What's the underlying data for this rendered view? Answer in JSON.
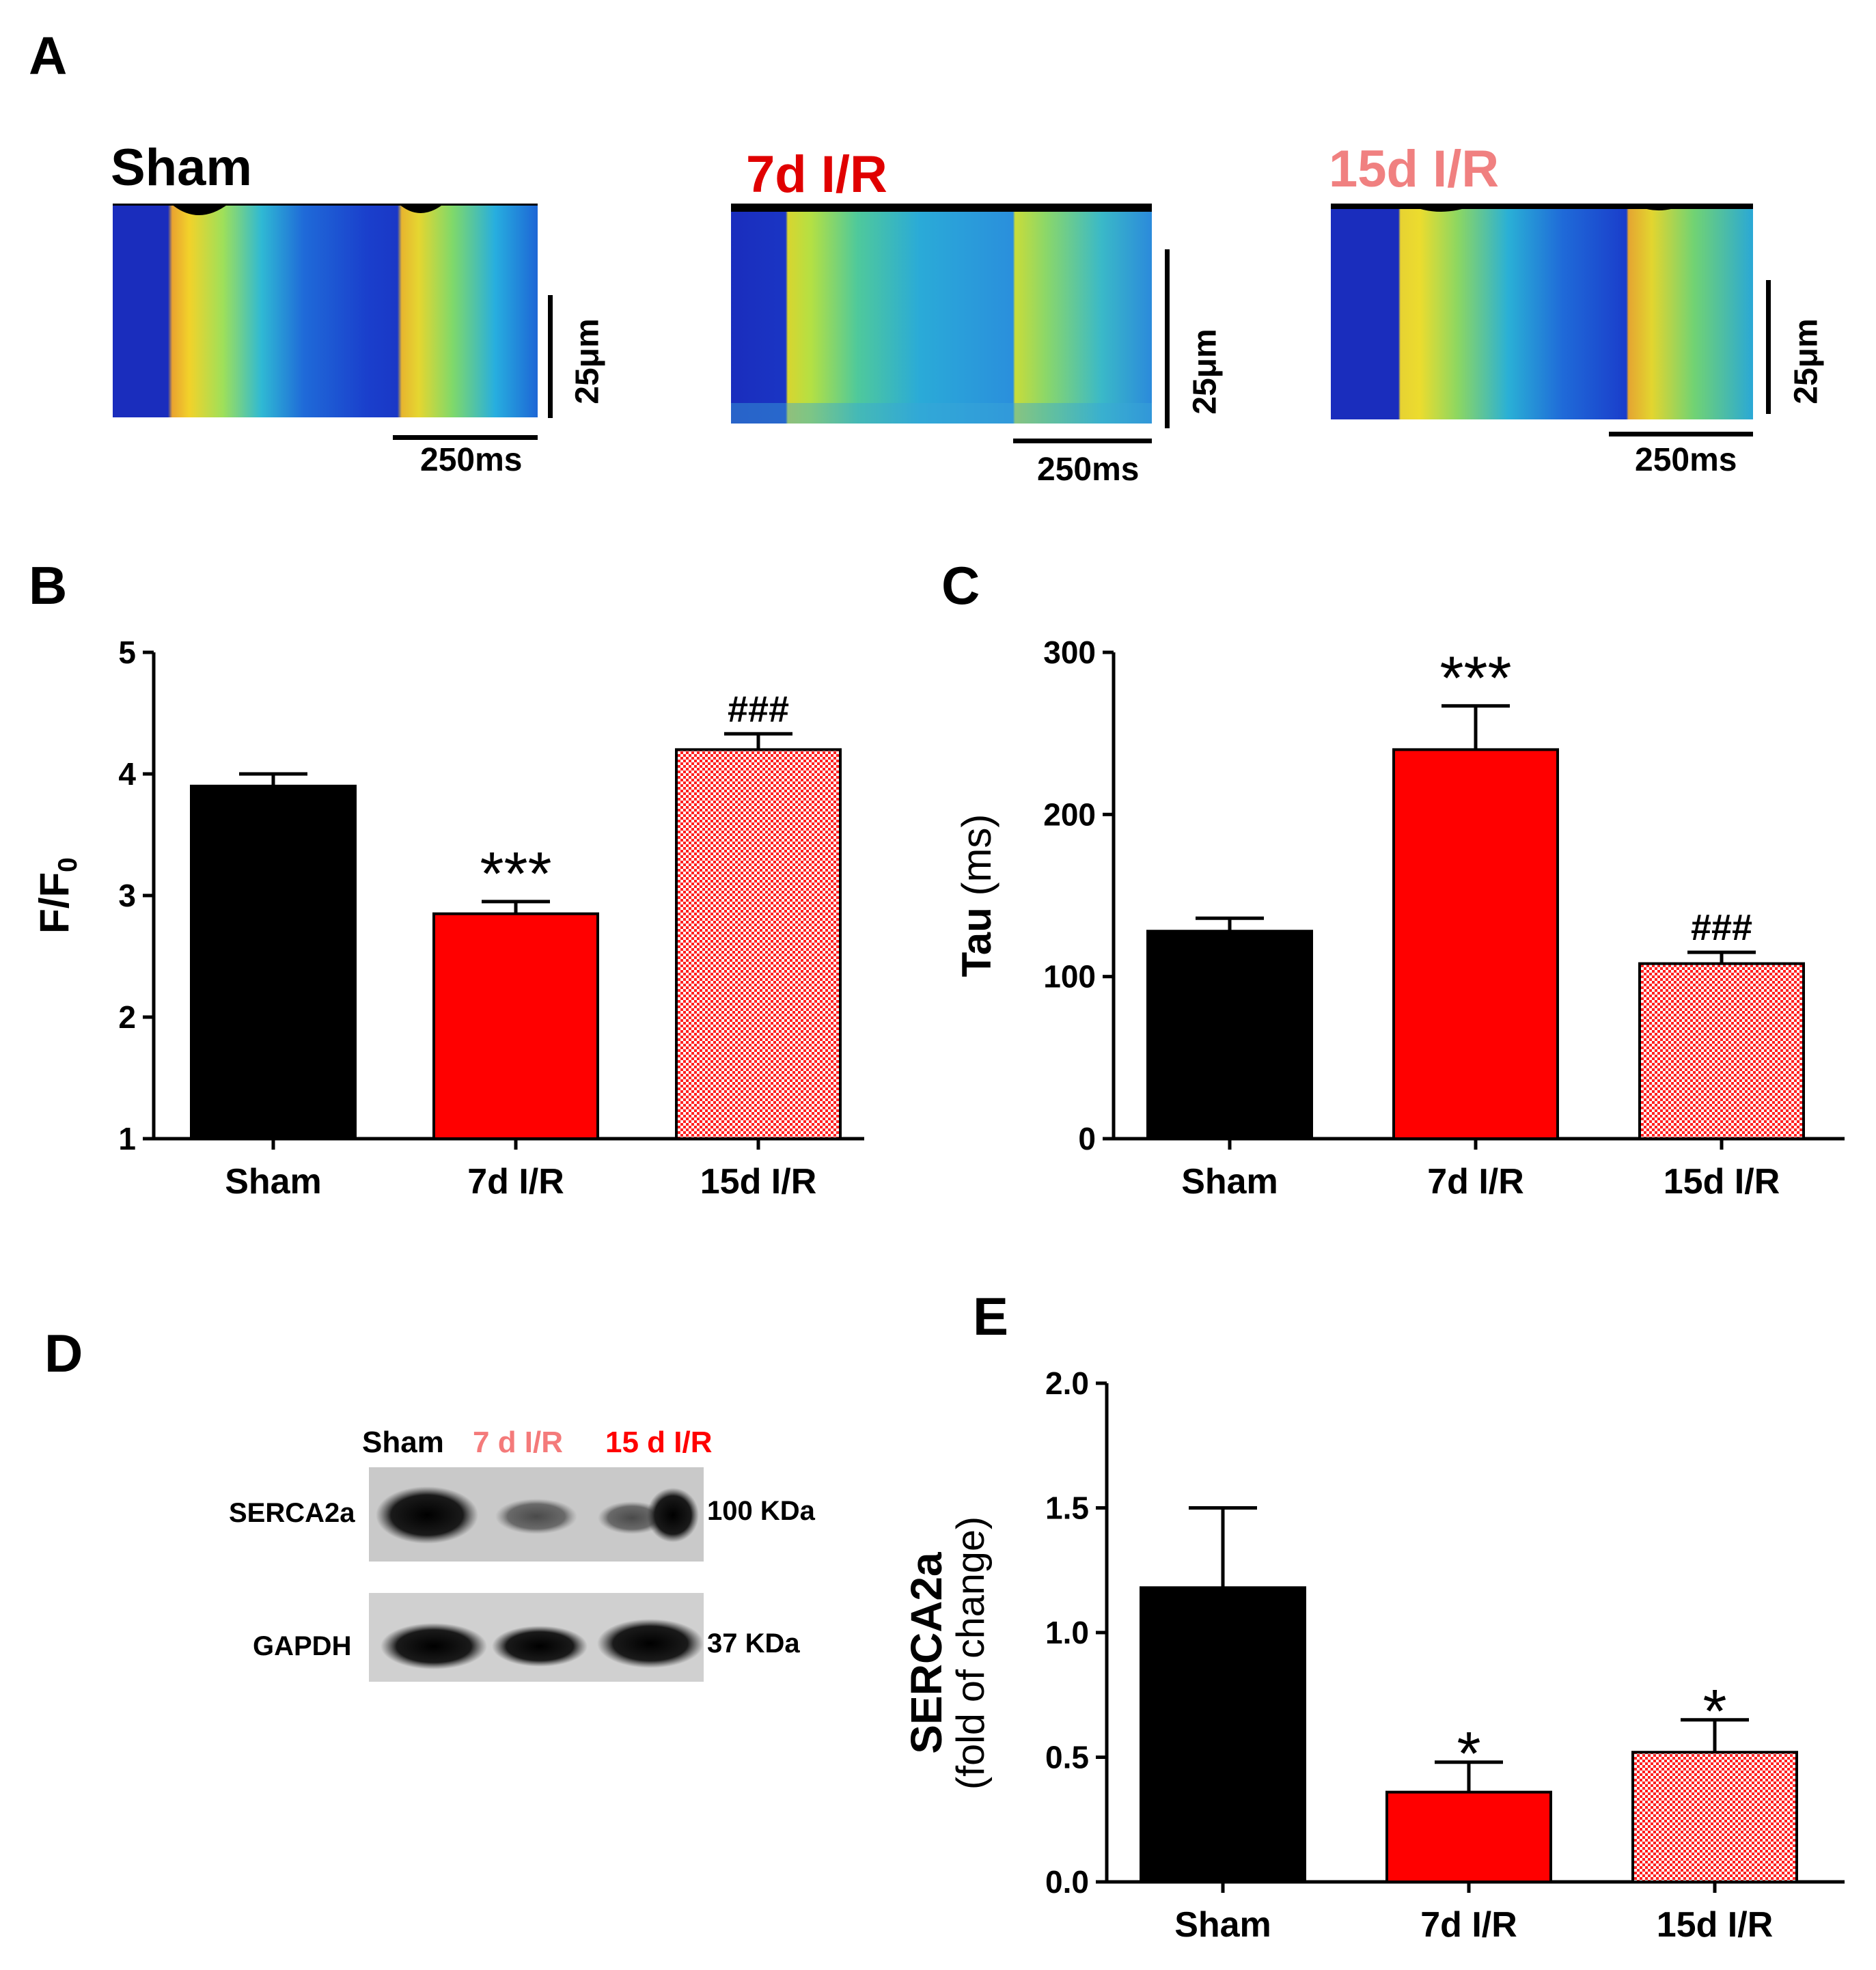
{
  "colors": {
    "sham": "#000000",
    "ir7": "#ff0000",
    "ir15_text": "#f08080",
    "ir15_fill": "#ff0000",
    "blot_label_7": "#f47a7a",
    "blot_label_15": "#ff0000"
  },
  "panels": {
    "a": "A",
    "b": "B",
    "c": "C",
    "d": "D",
    "e": "E"
  },
  "panel_a": {
    "titles": [
      "Sham",
      "7d I/R",
      "15d I/R"
    ],
    "scale_vertical": "25μm",
    "scale_horizontal": "250ms"
  },
  "panel_d": {
    "lanes": [
      "Sham",
      "7 d I/R",
      "15 d I/R"
    ],
    "rows": [
      {
        "protein": "SERCA2a",
        "size": "100 KDa"
      },
      {
        "protein": "GAPDH",
        "size": "37 KDa"
      }
    ]
  },
  "chart_data": [
    {
      "id": "B",
      "type": "bar",
      "categories": [
        "Sham",
        "7d I/R",
        "15d I/R"
      ],
      "values": [
        3.9,
        2.85,
        4.2
      ],
      "errors": [
        0.1,
        0.1,
        0.13
      ],
      "annotations": [
        "",
        "***",
        "###"
      ],
      "ylabel": "F/F0",
      "ylabel_main": "F/F",
      "ylabel_sub": "0",
      "ylim": [
        1,
        5
      ],
      "yticks": [
        1,
        2,
        3,
        4,
        5
      ],
      "fills": [
        "solid-black",
        "solid-red",
        "red-checker"
      ]
    },
    {
      "id": "C",
      "type": "bar",
      "categories": [
        "Sham",
        "7d I/R",
        "15d I/R"
      ],
      "values": [
        128,
        240,
        108
      ],
      "errors": [
        8,
        27,
        7
      ],
      "annotations": [
        "",
        "***",
        "###"
      ],
      "ylabel_main": "Tau",
      "ylabel_sub": " (ms)",
      "ylim": [
        0,
        300
      ],
      "yticks": [
        0,
        100,
        200,
        300
      ],
      "fills": [
        "solid-black",
        "solid-red",
        "red-checker"
      ]
    },
    {
      "id": "E",
      "type": "bar",
      "categories": [
        "Sham",
        "7d I/R",
        "15d I/R"
      ],
      "values": [
        1.18,
        0.36,
        0.52
      ],
      "errors": [
        0.32,
        0.12,
        0.13
      ],
      "annotations": [
        "",
        "*",
        "*"
      ],
      "ylabel_main": "SERCA2a",
      "ylabel_sub": "(fold of change)",
      "ylim": [
        0,
        2.0
      ],
      "yticks": [
        0.0,
        0.5,
        1.0,
        1.5,
        2.0
      ],
      "ytick_labels": [
        "0.0",
        "0.5",
        "1.0",
        "1.5",
        "2.0"
      ],
      "fills": [
        "solid-black",
        "solid-red",
        "red-checker"
      ]
    }
  ]
}
